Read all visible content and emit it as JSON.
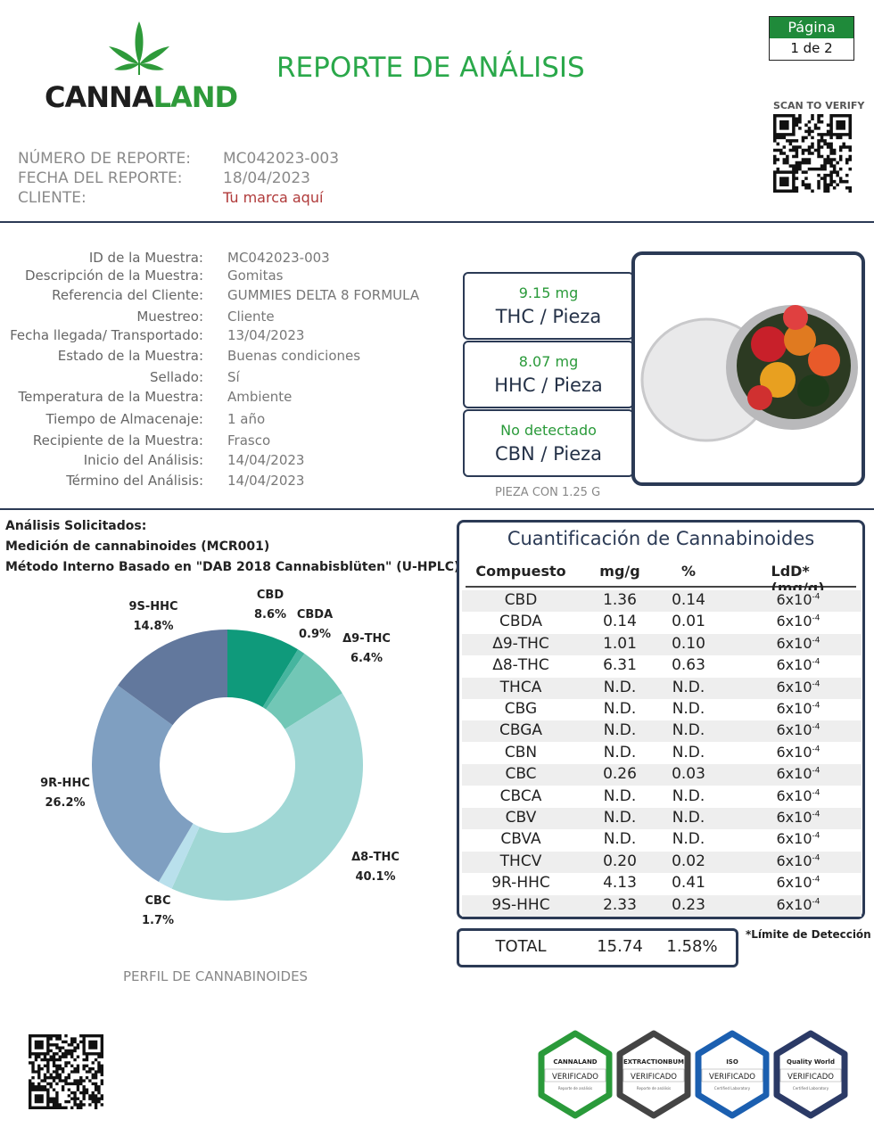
{
  "header": {
    "logo_dark": "CANNA",
    "logo_green": "LAND",
    "title": "REPORTE DE ANÁLISIS",
    "page_label": "Página",
    "page": "1 de 2",
    "scan": "SCAN TO VERIFY"
  },
  "report": {
    "rows": [
      [
        "NÚMERO DE REPORTE:",
        "MC042023-003"
      ],
      [
        "FECHA DEL REPORTE:",
        "18/04/2023"
      ],
      [
        "CLIENTE:",
        "Tu marca aquí"
      ]
    ]
  },
  "sample": {
    "rows": [
      [
        "ID de la Muestra:",
        "MC042023-003"
      ],
      [
        "Descripción de la Muestra:",
        "Gomitas"
      ],
      [
        "Referencia del Cliente:",
        "GUMMIES DELTA 8 FORMULA"
      ],
      [
        "Muestreo:",
        "Cliente"
      ],
      [
        "Fecha llegada/ Transportado:",
        "13/04/2023"
      ],
      [
        "Estado de la Muestra:",
        "Buenas condiciones"
      ],
      [
        "Sellado:",
        "Sí"
      ],
      [
        "Temperatura de la Muestra:",
        "Ambiente"
      ],
      [
        "Tiempo de Almacenaje:",
        "1 año"
      ],
      [
        "Recipiente de la Muestra:",
        "Frasco"
      ],
      [
        "Inicio del Análisis:",
        "14/04/2023"
      ],
      [
        "Término del Análisis:",
        "14/04/2023"
      ]
    ]
  },
  "results": [
    {
      "amount": "9.15 mg",
      "label": "THC / Pieza"
    },
    {
      "amount": "8.07 mg",
      "label": "HHC / Pieza"
    },
    {
      "amount": "No detectado",
      "label": "CBN / Pieza"
    }
  ],
  "piece_note": "PIEZA CON 1.25 G",
  "analysis": [
    "Análisis Solicitados:",
    "Medición de cannabinoides (MCR001)",
    "Método Interno Basado en \"DAB 2018 Cannabisblüten\" (U-HPLC)"
  ],
  "chart_data": {
    "type": "donut",
    "title": "PERFIL DE CANNABINOIDES",
    "categories": [
      "CBD",
      "CBDA",
      "Δ9-THC",
      "Δ8-THC",
      "CBC",
      "9R-HHC",
      "9S-HHC"
    ],
    "values": [
      8.6,
      0.9,
      6.4,
      40.1,
      1.7,
      26.2,
      14.8
    ],
    "value_labels": [
      "8.6%",
      "0.9%",
      "6.4%",
      "40.1%",
      "1.7%",
      "26.2%",
      "14.8%"
    ],
    "colors": [
      "#0f9a7b",
      "#46b59f",
      "#72c7b6",
      "#a0d7d5",
      "#b9e0ec",
      "#7f9fc1",
      "#62789d"
    ]
  },
  "table": {
    "title": "Cuantificación de Cannabinoides",
    "columns": [
      "Compuesto",
      "mg/g",
      "%",
      "LdD* (mg/g)"
    ],
    "rows": [
      [
        "CBD",
        "1.36",
        "0.14",
        {
          "base": "6x10",
          "exp": "-4"
        }
      ],
      [
        "CBDA",
        "0.14",
        "0.01",
        {
          "base": "6x10",
          "exp": "-4"
        }
      ],
      [
        "Δ9-THC",
        "1.01",
        "0.10",
        {
          "base": "6x10",
          "exp": "-4"
        }
      ],
      [
        "Δ8-THC",
        "6.31",
        "0.63",
        {
          "base": "6x10",
          "exp": "-4"
        }
      ],
      [
        "THCA",
        "N.D.",
        "N.D.",
        {
          "base": "6x10",
          "exp": "-4"
        }
      ],
      [
        "CBG",
        "N.D.",
        "N.D.",
        {
          "base": "6x10",
          "exp": "-4"
        }
      ],
      [
        "CBGA",
        "N.D.",
        "N.D.",
        {
          "base": "6x10",
          "exp": "-4"
        }
      ],
      [
        "CBN",
        "N.D.",
        "N.D.",
        {
          "base": "6x10",
          "exp": "-4"
        }
      ],
      [
        "CBC",
        "0.26",
        "0.03",
        {
          "base": "6x10",
          "exp": "-4"
        }
      ],
      [
        "CBCA",
        "N.D.",
        "N.D.",
        {
          "base": "6x10",
          "exp": "-4"
        }
      ],
      [
        "CBV",
        "N.D.",
        "N.D.",
        {
          "base": "6x10",
          "exp": "-4"
        }
      ],
      [
        "CBVA",
        "N.D.",
        "N.D.",
        {
          "base": "6x10",
          "exp": "-4"
        }
      ],
      [
        "THCV",
        "0.20",
        "0.02",
        {
          "base": "6x10",
          "exp": "-4"
        }
      ],
      [
        "9R-HHC",
        "4.13",
        "0.41",
        {
          "base": "6x10",
          "exp": "-4"
        }
      ],
      [
        "9S-HHC",
        "2.33",
        "0.23",
        {
          "base": "6x10",
          "exp": "-4"
        }
      ]
    ]
  },
  "total": {
    "label": "TOTAL",
    "mg": "15.74",
    "pct": "1.58%"
  },
  "footnote": "*Límite de Detección",
  "badges": [
    {
      "brand": "CANNALAND",
      "status": "VERIFICADO",
      "sub": "Reporte de análisis"
    },
    {
      "brand": "EXTRACTIONBUM",
      "status": "VERIFICADO",
      "sub": "Reporte de análisis"
    },
    {
      "brand": "ISO",
      "status": "VERIFICADO",
      "sub": "Certified Laboratory"
    },
    {
      "brand": "Quality World",
      "status": "VERIFICADO",
      "sub": "Certified Laboratory"
    }
  ]
}
